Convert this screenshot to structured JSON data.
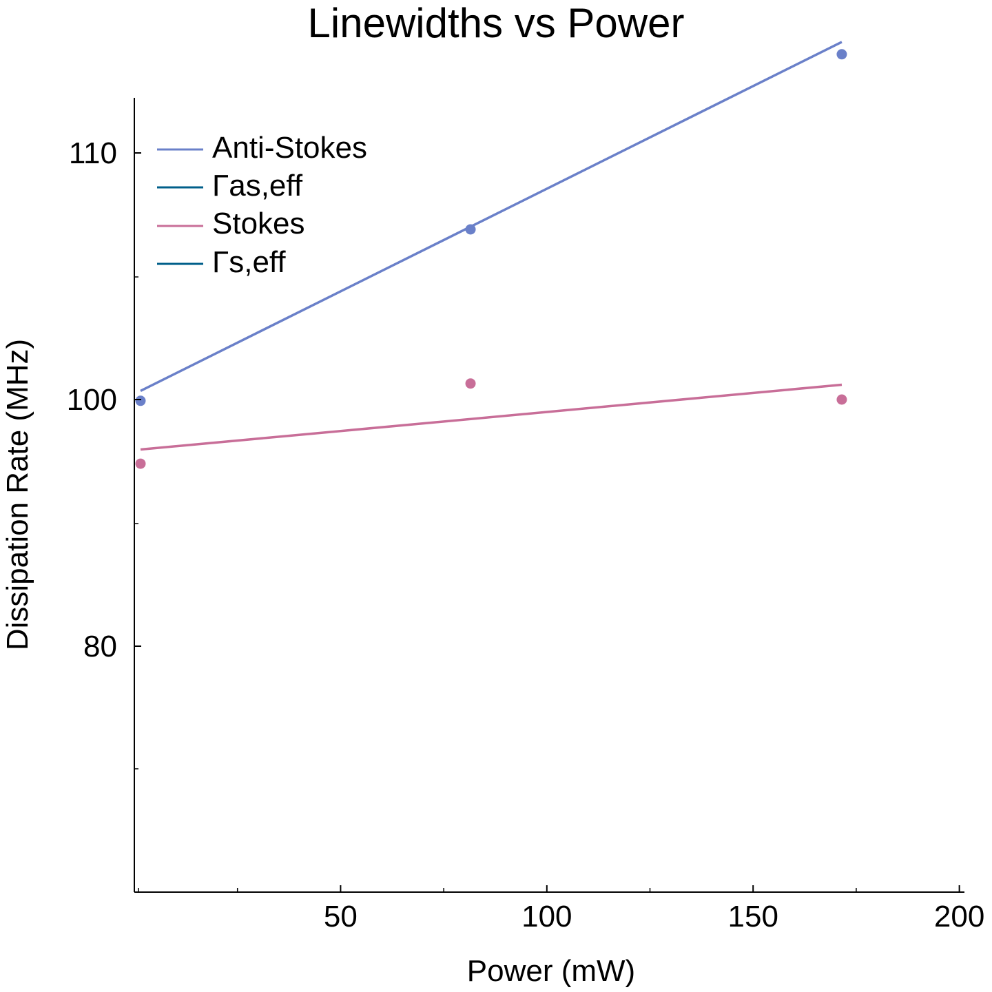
{
  "chart_data": {
    "type": "scatter",
    "title": "Linewidths vs Power",
    "xlabel": "Power (mW)",
    "ylabel": "Dissipation Rate (MHz)",
    "legend_position": "top-left",
    "grid": false,
    "xaxis": {
      "major_ticks": [
        50,
        100,
        150,
        200
      ],
      "minor_ticks": [
        1,
        25,
        75,
        125,
        175
      ],
      "tick_labels": [
        "50",
        "100",
        "150",
        "200"
      ]
    },
    "yaxis": {
      "labeled_ticks": [
        {
          "value": 80,
          "label": "80"
        },
        {
          "value": 100,
          "label": "100"
        },
        {
          "value": 110,
          "label": "110"
        }
      ],
      "minor_ticks": [
        95,
        90,
        75
      ]
    },
    "series": [
      {
        "name": "Anti-Stokes",
        "color": "#6a80c9",
        "kind": "points",
        "x": [
          1.5,
          81.5,
          171.5
        ],
        "y": [
          99.9,
          106.9,
          114.0
        ]
      },
      {
        "name": "Γas,eff",
        "color": "#6a80c9",
        "legend_color": "#005f8a",
        "kind": "line",
        "x": [
          1.5,
          171.5
        ],
        "y": [
          100.35,
          114.5
        ]
      },
      {
        "name": "Stokes",
        "color": "#c86e98",
        "kind": "points",
        "x": [
          1.5,
          81.5,
          171.5
        ],
        "y": [
          94.8,
          100.65,
          100.0
        ]
      },
      {
        "name": "Γs,eff",
        "color": "#c86e98",
        "legend_color": "#005f8a",
        "kind": "line",
        "x": [
          1.5,
          171.5
        ],
        "y": [
          95.95,
          100.6
        ]
      }
    ]
  }
}
